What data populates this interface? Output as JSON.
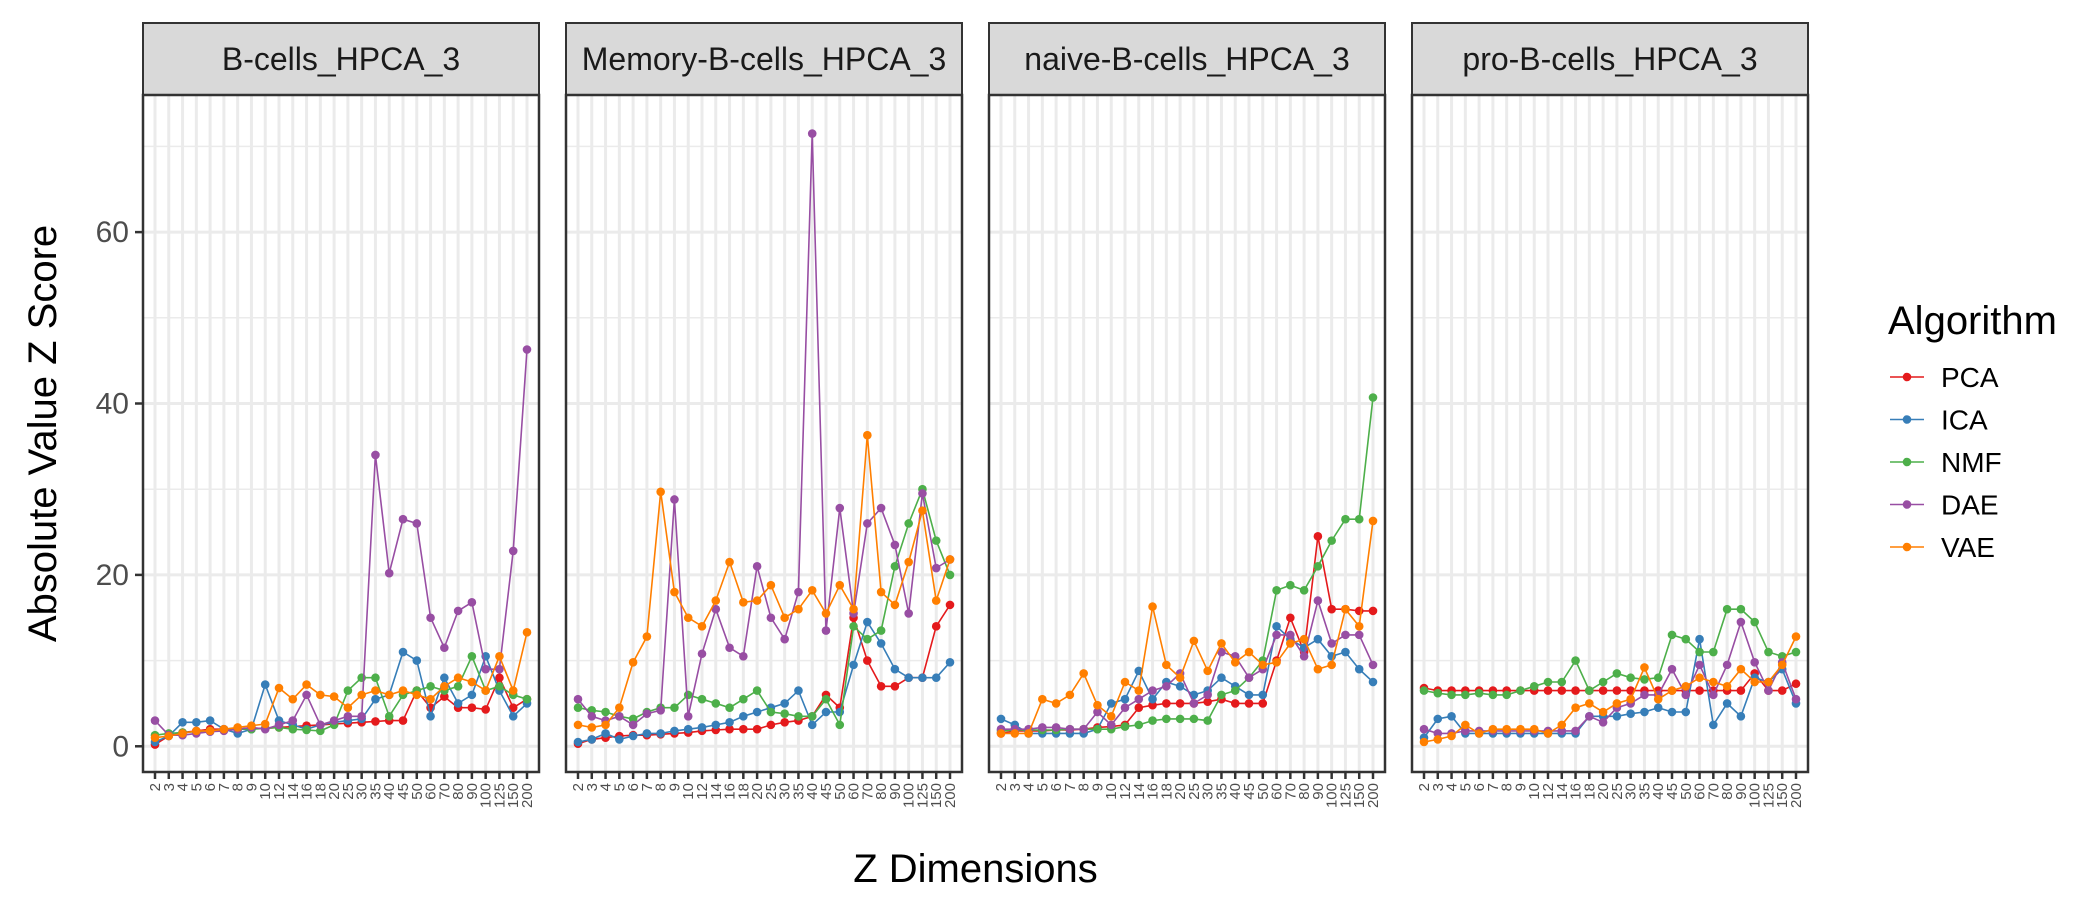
{
  "chart_data": {
    "type": "line",
    "xlabel": "Z Dimensions",
    "ylabel": "Absolute Value Z Score",
    "ylim": [
      -3,
      76
    ],
    "yticks": [
      0,
      20,
      40,
      60
    ],
    "grid": true,
    "legend": {
      "title": "Algorithm",
      "placement": "right"
    },
    "x": [
      "2",
      "3",
      "4",
      "5",
      "6",
      "7",
      "8",
      "9",
      "10",
      "12",
      "14",
      "16",
      "18",
      "20",
      "25",
      "30",
      "35",
      "40",
      "45",
      "50",
      "60",
      "70",
      "80",
      "90",
      "100",
      "125",
      "150",
      "200"
    ],
    "colors": {
      "PCA": "#E41A1C",
      "ICA": "#377EB8",
      "NMF": "#4DAF4A",
      "DAE": "#984EA3",
      "VAE": "#FF7F00"
    },
    "panels": [
      {
        "title": "B-cells_HPCA_3",
        "series": [
          {
            "name": "PCA",
            "values": [
              0.2,
              1.2,
              1.6,
              1.8,
              2.0,
              2.0,
              2.0,
              2.1,
              2.1,
              2.2,
              2.3,
              2.4,
              2.5,
              2.6,
              2.7,
              2.8,
              2.9,
              3.0,
              3.0,
              6.5,
              4.5,
              5.8,
              4.5,
              4.5,
              4.3,
              8.0,
              4.5,
              5.5
            ]
          },
          {
            "name": "ICA",
            "values": [
              0.5,
              1.2,
              2.8,
              2.8,
              3.0,
              2.0,
              1.5,
              2.0,
              7.2,
              3.0,
              2.5,
              2.0,
              2.5,
              2.8,
              3.0,
              3.2,
              5.5,
              6.0,
              11.0,
              10.0,
              3.5,
              8.0,
              5.0,
              6.0,
              10.5,
              6.5,
              3.5,
              5.0
            ]
          },
          {
            "name": "NMF",
            "values": [
              1.3,
              1.5,
              1.6,
              1.7,
              1.8,
              1.9,
              2.0,
              2.0,
              2.1,
              2.2,
              2.0,
              1.9,
              1.8,
              2.5,
              6.5,
              8.0,
              8.0,
              3.5,
              6.0,
              6.5,
              7.0,
              6.5,
              7.0,
              10.5,
              6.5,
              7.0,
              6.0,
              5.5
            ]
          },
          {
            "name": "DAE",
            "values": [
              3.0,
              1.3,
              1.3,
              1.5,
              1.7,
              1.8,
              2.0,
              2.2,
              2.0,
              2.5,
              3.0,
              6.0,
              2.5,
              3.0,
              3.5,
              3.5,
              34.0,
              20.2,
              26.5,
              26.0,
              15.0,
              11.5,
              15.8,
              16.8,
              9.0,
              9.0,
              22.8,
              46.3
            ]
          },
          {
            "name": "VAE",
            "values": [
              1.0,
              1.2,
              1.5,
              1.8,
              1.8,
              2.0,
              2.2,
              2.4,
              2.6,
              6.8,
              5.5,
              7.2,
              6.0,
              5.8,
              4.5,
              6.0,
              6.5,
              6.0,
              6.5,
              6.0,
              5.5,
              7.0,
              8.0,
              7.5,
              6.5,
              10.5,
              6.5,
              13.3
            ]
          }
        ]
      },
      {
        "title": "Memory-B-cells_HPCA_3",
        "series": [
          {
            "name": "PCA",
            "values": [
              0.3,
              0.8,
              1.0,
              1.2,
              1.3,
              1.3,
              1.4,
              1.5,
              1.6,
              1.8,
              1.9,
              2.0,
              2.0,
              2.0,
              2.5,
              2.8,
              3.0,
              3.5,
              6.0,
              4.5,
              15.0,
              10.0,
              7.0,
              7.0,
              8.0,
              8.0,
              14.0,
              16.5
            ]
          },
          {
            "name": "ICA",
            "values": [
              0.5,
              0.8,
              1.5,
              0.8,
              1.2,
              1.5,
              1.5,
              1.8,
              2.0,
              2.2,
              2.5,
              2.8,
              3.5,
              4.0,
              4.5,
              5.0,
              6.5,
              2.5,
              4.0,
              4.0,
              9.5,
              14.5,
              12.0,
              9.0,
              8.0,
              8.0,
              8.0,
              9.8
            ]
          },
          {
            "name": "NMF",
            "values": [
              4.5,
              4.2,
              4.0,
              3.5,
              3.2,
              4.0,
              4.5,
              4.5,
              6.0,
              5.5,
              5.0,
              4.5,
              5.5,
              6.5,
              4.0,
              3.8,
              3.5,
              3.5,
              5.5,
              2.5,
              14.0,
              12.5,
              13.5,
              21.0,
              26.0,
              30.0,
              24.0,
              20.0
            ]
          },
          {
            "name": "DAE",
            "values": [
              5.5,
              3.5,
              3.0,
              3.5,
              2.5,
              3.8,
              4.2,
              28.8,
              3.5,
              10.8,
              16.0,
              11.5,
              10.5,
              21.0,
              15.0,
              12.5,
              18.0,
              71.5,
              13.5,
              27.8,
              15.5,
              26.0,
              27.8,
              23.5,
              15.5,
              29.5,
              20.8,
              21.8
            ]
          },
          {
            "name": "VAE",
            "values": [
              2.5,
              2.2,
              2.5,
              4.5,
              9.8,
              12.8,
              29.7,
              18.0,
              15.0,
              14.0,
              17.0,
              21.5,
              16.8,
              17.0,
              18.8,
              15.0,
              16.0,
              18.2,
              15.5,
              18.8,
              16.0,
              36.3,
              18.0,
              16.5,
              21.5,
              27.5,
              17.0,
              21.8
            ]
          }
        ]
      },
      {
        "title": "naive-B-cells_HPCA_3",
        "series": [
          {
            "name": "PCA",
            "values": [
              1.5,
              1.8,
              1.8,
              1.8,
              1.9,
              1.9,
              2.0,
              2.2,
              2.3,
              2.5,
              4.5,
              4.8,
              5.0,
              5.0,
              5.0,
              5.2,
              5.5,
              5.0,
              5.0,
              5.0,
              10.0,
              15.0,
              11.0,
              24.5,
              16.0,
              16.0,
              15.8,
              15.8
            ]
          },
          {
            "name": "ICA",
            "values": [
              3.2,
              2.5,
              1.5,
              1.5,
              1.5,
              1.5,
              1.5,
              2.0,
              5.0,
              5.5,
              8.8,
              5.5,
              7.5,
              7.0,
              6.0,
              6.5,
              8.0,
              7.0,
              6.0,
              6.0,
              14.0,
              12.5,
              11.5,
              12.5,
              10.5,
              11.0,
              9.0,
              7.5
            ]
          },
          {
            "name": "NMF",
            "values": [
              1.8,
              1.9,
              1.9,
              1.9,
              1.9,
              2.0,
              2.0,
              2.0,
              2.0,
              2.3,
              2.5,
              3.0,
              3.2,
              3.2,
              3.2,
              3.0,
              6.0,
              6.5,
              8.0,
              10.0,
              18.2,
              18.8,
              18.2,
              21.0,
              24.0,
              26.5,
              26.5,
              40.7
            ]
          },
          {
            "name": "DAE",
            "values": [
              2.0,
              2.0,
              2.0,
              2.2,
              2.2,
              2.0,
              2.0,
              4.0,
              2.5,
              4.5,
              5.5,
              6.5,
              7.0,
              8.5,
              5.0,
              6.0,
              11.0,
              10.5,
              8.0,
              9.0,
              13.0,
              13.0,
              10.5,
              17.0,
              12.0,
              13.0,
              13.0,
              9.5
            ]
          },
          {
            "name": "VAE",
            "values": [
              1.5,
              1.5,
              1.5,
              5.5,
              5.0,
              6.0,
              8.5,
              4.8,
              3.5,
              7.5,
              6.5,
              16.3,
              9.5,
              8.0,
              12.3,
              8.8,
              12.0,
              9.8,
              11.0,
              9.5,
              9.8,
              12.0,
              12.5,
              9.0,
              9.5,
              16.0,
              14.0,
              26.3
            ]
          }
        ]
      },
      {
        "title": "pro-B-cells_HPCA_3",
        "series": [
          {
            "name": "PCA",
            "values": [
              6.8,
              6.5,
              6.5,
              6.5,
              6.5,
              6.5,
              6.5,
              6.5,
              6.5,
              6.5,
              6.5,
              6.5,
              6.5,
              6.5,
              6.5,
              6.5,
              6.5,
              6.5,
              6.5,
              6.5,
              6.5,
              6.5,
              6.5,
              6.5,
              8.5,
              6.5,
              6.5,
              7.3
            ]
          },
          {
            "name": "ICA",
            "values": [
              1.0,
              3.2,
              3.5,
              1.5,
              1.5,
              1.5,
              1.5,
              1.5,
              1.5,
              1.5,
              1.5,
              1.5,
              3.5,
              3.5,
              3.5,
              3.8,
              4.0,
              4.5,
              4.0,
              4.0,
              12.5,
              2.5,
              5.0,
              3.5,
              8.0,
              7.5,
              9.0,
              5.0
            ]
          },
          {
            "name": "NMF",
            "values": [
              6.5,
              6.2,
              6.0,
              6.0,
              6.2,
              6.0,
              6.0,
              6.5,
              7.0,
              7.5,
              7.5,
              10.0,
              6.5,
              7.5,
              8.5,
              8.0,
              7.8,
              8.0,
              13.0,
              12.5,
              11.0,
              11.0,
              16.0,
              16.0,
              14.5,
              11.0,
              10.5,
              11.0
            ]
          },
          {
            "name": "DAE",
            "values": [
              2.0,
              1.5,
              1.5,
              1.8,
              1.8,
              1.8,
              1.8,
              1.8,
              1.8,
              1.8,
              1.8,
              1.8,
              3.5,
              2.8,
              4.5,
              5.0,
              6.0,
              6.0,
              9.0,
              6.0,
              9.5,
              6.0,
              9.5,
              14.5,
              9.8,
              6.5,
              9.8,
              5.5
            ]
          },
          {
            "name": "VAE",
            "values": [
              0.5,
              0.8,
              1.2,
              2.5,
              1.5,
              2.0,
              2.0,
              2.0,
              2.0,
              1.5,
              2.5,
              4.5,
              5.0,
              4.0,
              5.0,
              5.5,
              9.2,
              5.5,
              6.5,
              7.0,
              8.0,
              7.5,
              7.0,
              9.0,
              7.5,
              7.5,
              9.5,
              12.8
            ]
          }
        ]
      }
    ]
  }
}
